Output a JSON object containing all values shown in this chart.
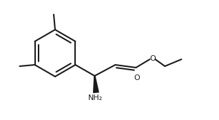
{
  "bg_color": "#ffffff",
  "line_color": "#1a1a1a",
  "line_width": 1.5,
  "font_size_label": 8,
  "label_NH2": "NH₂",
  "label_O_carbonyl": "O",
  "label_O_ester": "O",
  "figsize": [
    3.18,
    1.74
  ],
  "dpi": 100
}
